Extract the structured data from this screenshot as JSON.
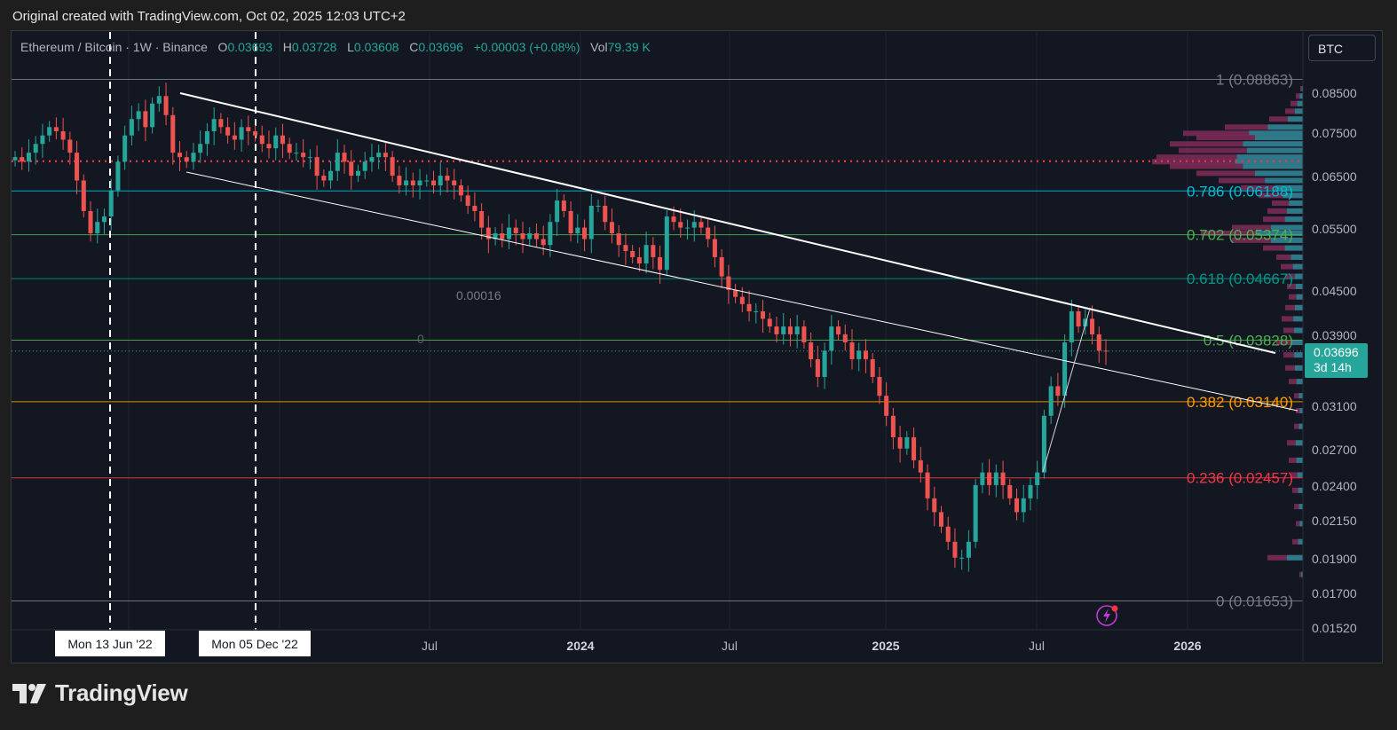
{
  "header_note": "Original created with TradingView.com, Oct 02, 2025 12:03 UTC+2",
  "brand": {
    "name": "TradingView"
  },
  "symbol_button": "BTC",
  "legend": {
    "title": "Ethereum / Bitcoin · 1W · Binance",
    "o_label": "O",
    "o": "0.03693",
    "h_label": "H",
    "h": "0.03728",
    "l_label": "L",
    "l": "0.03608",
    "c_label": "C",
    "c": "0.03696",
    "change": "+0.00003 (+0.08%)",
    "vol_label": "Vol",
    "vol": "79.39 K"
  },
  "price_tag": {
    "price": "0.03696",
    "countdown": "3d 14h"
  },
  "colors": {
    "up": "#26a69a",
    "down": "#ef5350",
    "background": "#131722",
    "fib_1": "#787b86",
    "fib_786": "#00bcd4",
    "fib_702": "#4caf50",
    "fib_618": "#009688",
    "fib_5": "#4caf50",
    "fib_382": "#ff9800",
    "fib_236": "#f23645",
    "fib_0": "#787b86",
    "dotted_level": "#f23645",
    "profile_up": "#2a7d8c",
    "profile_down": "#7a2a55"
  },
  "annotations": {
    "a1": "0.00016",
    "a2": "0"
  },
  "chart_data": {
    "type": "candlestick",
    "pair": "ETH/BTC",
    "timeframe": "1W",
    "exchange": "Binance",
    "y_axis": {
      "scale": "log",
      "range": [
        0.0152,
        0.088
      ],
      "ticks": [
        "0.08500",
        "0.07500",
        "0.06500",
        "0.05500",
        "0.04500",
        "0.03900",
        "0.03100",
        "0.02700",
        "0.02400",
        "0.02150",
        "0.01900",
        "0.01700",
        "0.01520"
      ]
    },
    "x_axis": {
      "ticks": [
        "Jul",
        "2024",
        "Jul",
        "2025",
        "Jul",
        "2026"
      ],
      "highlighted": [
        "Mon 13 Jun '22",
        "Mon 05 Dec '22"
      ]
    },
    "fib_levels": [
      {
        "ratio": "1",
        "price": 0.08863,
        "label": "1 (0.08863)"
      },
      {
        "ratio": "0.786",
        "price": 0.06188,
        "label": "0.786 (0.06188)"
      },
      {
        "ratio": "0.702",
        "price": 0.05374,
        "label": "0.702 (0.05374)"
      },
      {
        "ratio": "0.618",
        "price": 0.04667,
        "label": "0.618 (0.04667)"
      },
      {
        "ratio": "0.5",
        "price": 0.03828,
        "label": "0.5 (0.03828)"
      },
      {
        "ratio": "0.382",
        "price": 0.0314,
        "label": "0.382 (0.03140)"
      },
      {
        "ratio": "0.236",
        "price": 0.02457,
        "label": "0.236 (0.02457)"
      },
      {
        "ratio": "0",
        "price": 0.01653,
        "label": "0 (0.01653)"
      }
    ],
    "dotted_level": 0.0681,
    "last_price": 0.03696,
    "closes": [
      0.069,
      0.068,
      0.07,
      0.072,
      0.074,
      0.076,
      0.075,
      0.073,
      0.07,
      0.064,
      0.058,
      0.054,
      0.056,
      0.057,
      0.062,
      0.068,
      0.074,
      0.078,
      0.08,
      0.076,
      0.082,
      0.084,
      0.079,
      0.07,
      0.069,
      0.068,
      0.07,
      0.072,
      0.075,
      0.078,
      0.076,
      0.074,
      0.073,
      0.076,
      0.075,
      0.074,
      0.072,
      0.071,
      0.074,
      0.072,
      0.07,
      0.07,
      0.069,
      0.069,
      0.065,
      0.064,
      0.066,
      0.07,
      0.068,
      0.065,
      0.066,
      0.068,
      0.069,
      0.07,
      0.069,
      0.065,
      0.063,
      0.064,
      0.063,
      0.064,
      0.064,
      0.063,
      0.065,
      0.064,
      0.063,
      0.061,
      0.059,
      0.058,
      0.055,
      0.053,
      0.054,
      0.053,
      0.055,
      0.054,
      0.053,
      0.054,
      0.053,
      0.052,
      0.056,
      0.06,
      0.058,
      0.054,
      0.055,
      0.053,
      0.059,
      0.059,
      0.056,
      0.054,
      0.052,
      0.051,
      0.05,
      0.049,
      0.052,
      0.05,
      0.048,
      0.057,
      0.056,
      0.055,
      0.055,
      0.056,
      0.055,
      0.053,
      0.05,
      0.047,
      0.045,
      0.044,
      0.043,
      0.042,
      0.042,
      0.041,
      0.04,
      0.039,
      0.04,
      0.039,
      0.04,
      0.038,
      0.036,
      0.034,
      0.037,
      0.04,
      0.039,
      0.038,
      0.036,
      0.037,
      0.036,
      0.034,
      0.032,
      0.03,
      0.028,
      0.027,
      0.028,
      0.026,
      0.025,
      0.023,
      0.022,
      0.021,
      0.02,
      0.019,
      0.019,
      0.02,
      0.024,
      0.025,
      0.024,
      0.025,
      0.024,
      0.023,
      0.022,
      0.023,
      0.024,
      0.025,
      0.03,
      0.033,
      0.032,
      0.038,
      0.042,
      0.04,
      0.041,
      0.039,
      0.037,
      0.03696
    ]
  }
}
